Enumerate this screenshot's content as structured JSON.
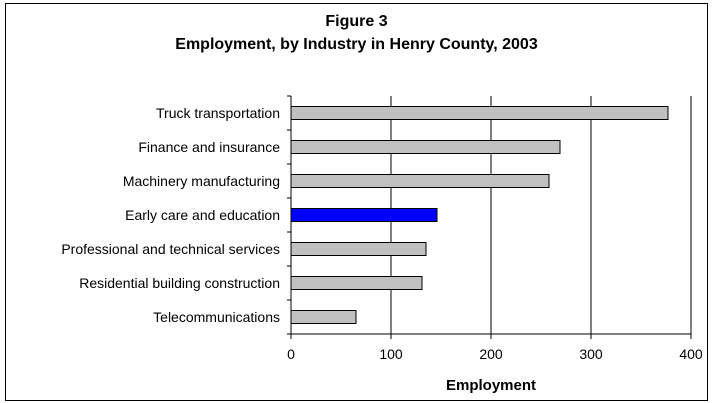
{
  "chart_data": {
    "type": "bar",
    "orientation": "horizontal",
    "title_line1": "Figure 3",
    "title_line2": "Employment, by Industry in Henry County, 2003",
    "xlabel": "Employment",
    "xlim": [
      0,
      400
    ],
    "xticks": [
      "0",
      "100",
      "200",
      "300",
      "400"
    ],
    "grid": true,
    "categories": [
      "Truck transportation",
      "Finance and insurance",
      "Machinery manufacturing",
      "Early care and education",
      "Professional and technical services",
      "Residential building construction",
      "Telecommunications"
    ],
    "values": [
      377,
      269,
      258,
      146,
      135,
      131,
      65
    ],
    "bar_colors": [
      "#c0c0c0",
      "#c0c0c0",
      "#c0c0c0",
      "#0000ff",
      "#c0c0c0",
      "#c0c0c0",
      "#c0c0c0"
    ]
  }
}
